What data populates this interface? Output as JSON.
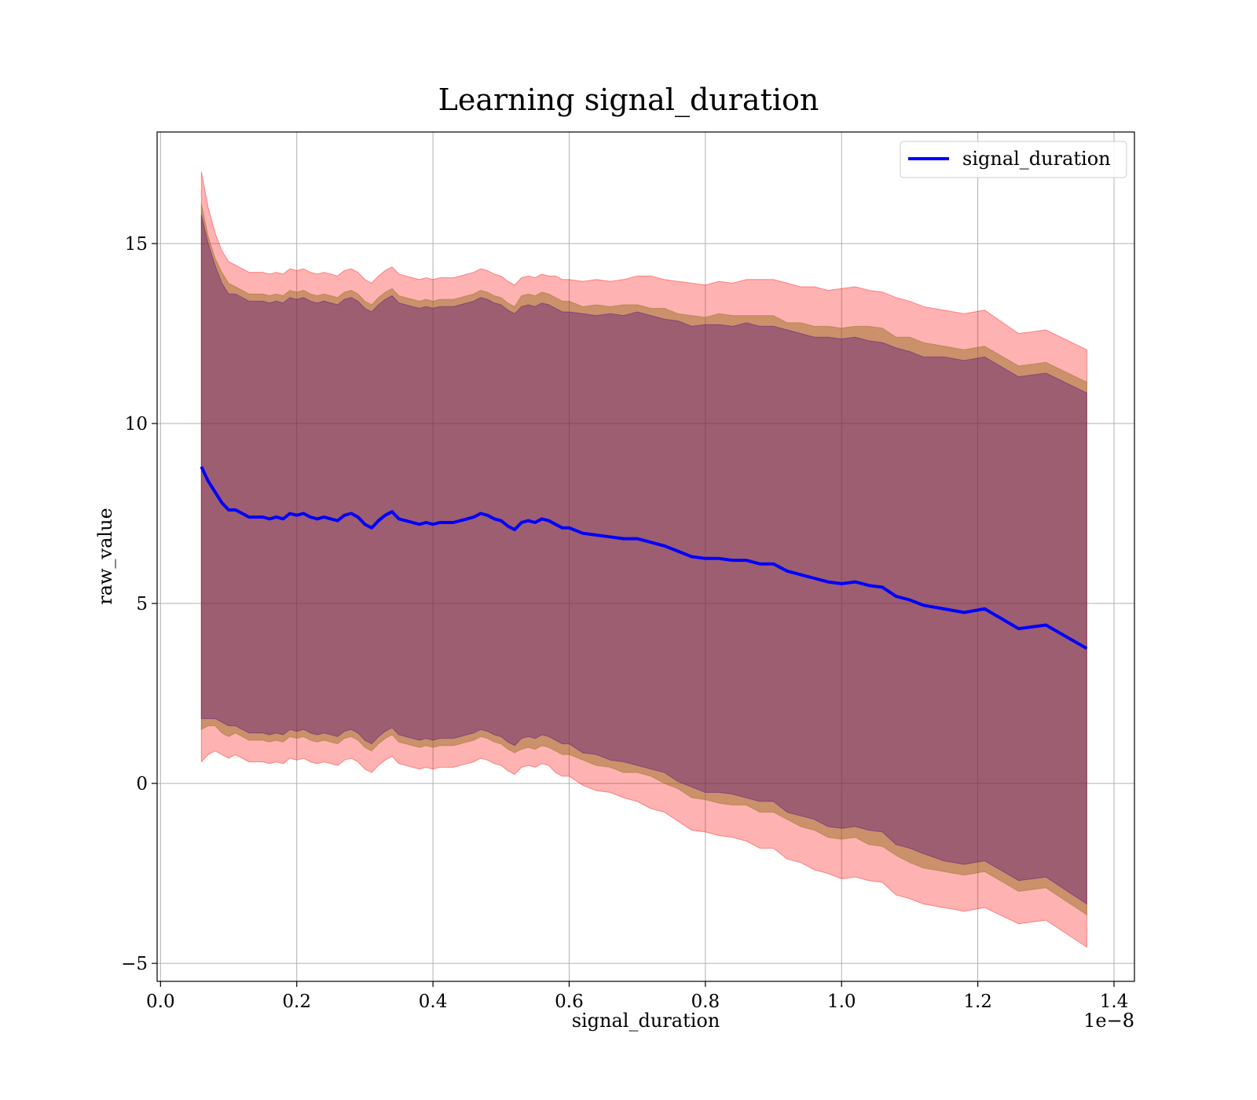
{
  "chart_data": {
    "type": "line",
    "title": "Learning signal_duration",
    "xlabel": "signal_duration",
    "ylabel": "raw_value",
    "x_offset_text": "1e−8",
    "xlim": [
      -0.005,
      1.43
    ],
    "ylim": [
      -5.5,
      18.1
    ],
    "grid": true,
    "legend_position": "top-right",
    "x_ticks": [
      0.0,
      0.2,
      0.4,
      0.6,
      0.8,
      1.0,
      1.2,
      1.4
    ],
    "x_tick_labels": [
      "0.0",
      "0.2",
      "0.4",
      "0.6",
      "0.8",
      "1.0",
      "1.2",
      "1.4"
    ],
    "y_ticks": [
      -5,
      0,
      5,
      10,
      15
    ],
    "y_tick_labels": [
      "−5",
      "0",
      "5",
      "10",
      "15"
    ],
    "colors": {
      "line": "#0000ff",
      "outer_band": "#ff0000",
      "middle_band": "#8b6914",
      "inner_band": "#4b0082"
    },
    "series": [
      {
        "name": "signal_duration",
        "x": [
          0.06,
          0.07,
          0.08,
          0.09,
          0.1,
          0.11,
          0.12,
          0.13,
          0.14,
          0.15,
          0.16,
          0.17,
          0.18,
          0.19,
          0.2,
          0.21,
          0.22,
          0.23,
          0.24,
          0.25,
          0.26,
          0.27,
          0.28,
          0.29,
          0.3,
          0.31,
          0.32,
          0.33,
          0.34,
          0.35,
          0.36,
          0.37,
          0.38,
          0.39,
          0.4,
          0.41,
          0.42,
          0.43,
          0.44,
          0.45,
          0.46,
          0.47,
          0.48,
          0.49,
          0.5,
          0.51,
          0.52,
          0.53,
          0.54,
          0.55,
          0.56,
          0.57,
          0.58,
          0.59,
          0.6,
          0.62,
          0.64,
          0.66,
          0.68,
          0.7,
          0.72,
          0.74,
          0.76,
          0.78,
          0.8,
          0.82,
          0.84,
          0.86,
          0.88,
          0.9,
          0.92,
          0.94,
          0.96,
          0.98,
          1.0,
          1.02,
          1.04,
          1.06,
          1.08,
          1.1,
          1.12,
          1.15,
          1.18,
          1.21,
          1.26,
          1.3,
          1.36
        ],
        "y": [
          8.8,
          8.4,
          8.1,
          7.8,
          7.6,
          7.6,
          7.5,
          7.4,
          7.4,
          7.4,
          7.35,
          7.4,
          7.35,
          7.5,
          7.45,
          7.5,
          7.4,
          7.35,
          7.4,
          7.35,
          7.3,
          7.45,
          7.5,
          7.4,
          7.2,
          7.1,
          7.3,
          7.45,
          7.55,
          7.35,
          7.3,
          7.25,
          7.2,
          7.25,
          7.2,
          7.25,
          7.25,
          7.25,
          7.3,
          7.35,
          7.4,
          7.5,
          7.45,
          7.35,
          7.3,
          7.15,
          7.05,
          7.25,
          7.3,
          7.25,
          7.35,
          7.3,
          7.2,
          7.1,
          7.1,
          6.95,
          6.9,
          6.85,
          6.8,
          6.8,
          6.7,
          6.6,
          6.45,
          6.3,
          6.25,
          6.25,
          6.2,
          6.2,
          6.1,
          6.1,
          5.9,
          5.8,
          5.7,
          5.6,
          5.55,
          5.6,
          5.5,
          5.45,
          5.2,
          5.1,
          4.95,
          4.85,
          4.75,
          4.85,
          4.3,
          4.4,
          3.75
        ]
      }
    ],
    "bands": [
      {
        "label": "outer",
        "half_width": [
          8.2,
          7.6,
          7.2,
          7.0,
          6.9,
          6.8,
          6.8,
          6.8,
          6.8,
          6.8,
          6.8,
          6.8,
          6.8,
          6.8,
          6.8,
          6.8,
          6.8,
          6.8,
          6.8,
          6.8,
          6.8,
          6.8,
          6.8,
          6.8,
          6.8,
          6.8,
          6.8,
          6.8,
          6.8,
          6.8,
          6.8,
          6.8,
          6.8,
          6.8,
          6.8,
          6.8,
          6.8,
          6.8,
          6.8,
          6.8,
          6.8,
          6.8,
          6.8,
          6.8,
          6.8,
          6.8,
          6.8,
          6.8,
          6.8,
          6.8,
          6.8,
          6.8,
          6.9,
          6.9,
          6.9,
          7.0,
          7.1,
          7.1,
          7.2,
          7.3,
          7.4,
          7.4,
          7.5,
          7.6,
          7.6,
          7.7,
          7.7,
          7.8,
          7.9,
          7.9,
          8.0,
          8.0,
          8.1,
          8.1,
          8.2,
          8.2,
          8.2,
          8.2,
          8.3,
          8.3,
          8.3,
          8.3,
          8.3,
          8.3,
          8.2,
          8.2,
          8.3
        ]
      },
      {
        "label": "middle",
        "half_width": [
          7.3,
          6.8,
          6.5,
          6.4,
          6.3,
          6.2,
          6.2,
          6.2,
          6.2,
          6.2,
          6.2,
          6.2,
          6.2,
          6.2,
          6.2,
          6.2,
          6.2,
          6.2,
          6.2,
          6.2,
          6.2,
          6.2,
          6.2,
          6.2,
          6.2,
          6.2,
          6.2,
          6.2,
          6.2,
          6.2,
          6.2,
          6.2,
          6.2,
          6.2,
          6.2,
          6.2,
          6.2,
          6.2,
          6.2,
          6.2,
          6.2,
          6.2,
          6.2,
          6.2,
          6.2,
          6.2,
          6.2,
          6.3,
          6.3,
          6.3,
          6.3,
          6.3,
          6.3,
          6.3,
          6.3,
          6.3,
          6.4,
          6.4,
          6.5,
          6.5,
          6.5,
          6.6,
          6.6,
          6.7,
          6.7,
          6.8,
          6.8,
          6.8,
          6.9,
          6.9,
          6.9,
          7.0,
          7.0,
          7.1,
          7.1,
          7.1,
          7.2,
          7.2,
          7.2,
          7.3,
          7.3,
          7.3,
          7.3,
          7.3,
          7.3,
          7.3,
          7.4
        ]
      },
      {
        "label": "inner",
        "half_width": [
          7.0,
          6.6,
          6.3,
          6.1,
          6.0,
          6.0,
          6.0,
          6.0,
          6.0,
          6.0,
          6.0,
          6.0,
          6.0,
          6.0,
          6.0,
          6.0,
          6.0,
          6.0,
          6.0,
          6.0,
          6.0,
          6.0,
          6.0,
          6.0,
          6.0,
          6.0,
          6.0,
          6.0,
          6.0,
          6.0,
          6.0,
          6.0,
          6.0,
          6.0,
          6.0,
          6.0,
          6.0,
          6.0,
          6.0,
          6.0,
          6.0,
          6.0,
          6.0,
          6.0,
          6.0,
          6.0,
          6.0,
          6.0,
          6.0,
          6.0,
          6.0,
          6.0,
          6.0,
          6.0,
          6.0,
          6.1,
          6.1,
          6.2,
          6.2,
          6.3,
          6.3,
          6.3,
          6.4,
          6.4,
          6.5,
          6.5,
          6.5,
          6.6,
          6.6,
          6.6,
          6.7,
          6.7,
          6.7,
          6.8,
          6.8,
          6.8,
          6.8,
          6.8,
          6.9,
          6.9,
          6.9,
          7.0,
          7.0,
          7.0,
          7.0,
          7.0,
          7.1
        ]
      }
    ],
    "legend": [
      {
        "label": "signal_duration",
        "color": "#0000ff"
      }
    ]
  }
}
